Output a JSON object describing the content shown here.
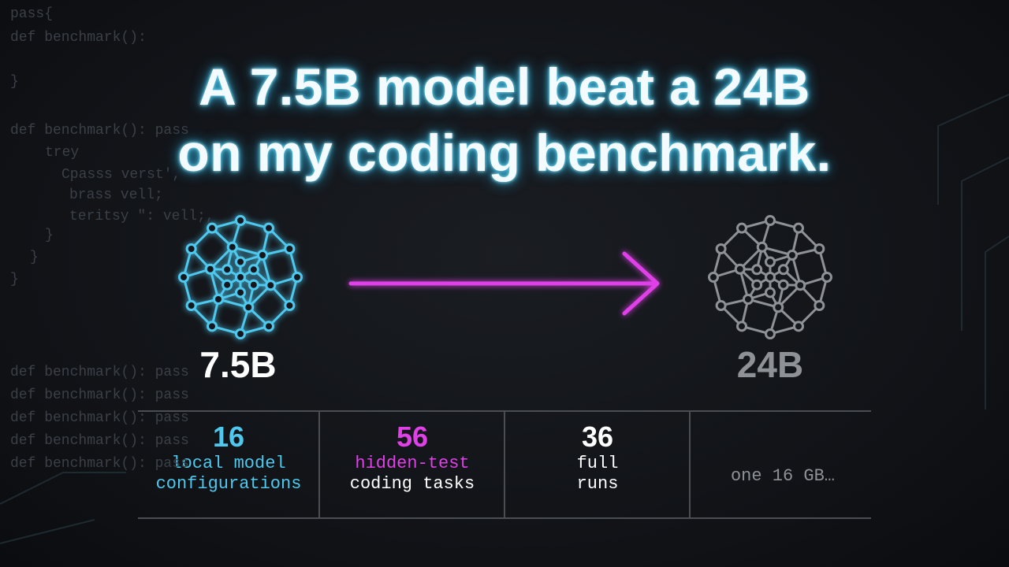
{
  "background_code": [
    "pass{",
    "def benchmark():",
    "}",
    "def benchmark(): pass",
    "trey",
    "Cpasss verst',",
    "brass vell;",
    "teritsy \": vell;,",
    "}",
    "}",
    "}",
    "def benchmark(): pass",
    "def benchmark(): pass",
    "def benchmark(): pass",
    "def benchmark(): pass",
    "def benchmark(): pass"
  ],
  "title": {
    "lines": [
      "A 7.5B model beat a 24B",
      "on my coding benchmark."
    ]
  },
  "models": {
    "small": "7.5B",
    "large": "24B"
  },
  "stats": [
    {
      "number": 16,
      "lines": [
        "local model",
        "configurations"
      ]
    },
    {
      "number": 56,
      "lines": [
        "hidden-test",
        "coding tasks"
      ]
    },
    {
      "number": 36,
      "lines": [
        "full",
        "runs"
      ]
    },
    {
      "lines": [
        "one 16 GB…"
      ]
    }
  ]
}
